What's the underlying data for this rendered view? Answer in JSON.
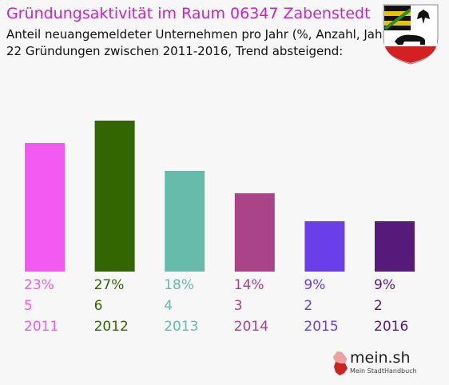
{
  "header": {
    "title": "Gründungsaktivität im Raum 06347 Zabenstedt",
    "subtitle1": "Anteil neuangemeldeter Unternehmen pro Jahr (%, Anzahl, Jahr)",
    "subtitle2": "22 Gründungen zwischen 2011-2016, Trend absteigend:"
  },
  "brand": {
    "name": "mein.sh",
    "tagline": "Mein StadtHandbuch"
  },
  "chart_data": {
    "type": "bar",
    "title": "Gründungsaktivität im Raum 06347 Zabenstedt",
    "categories": [
      "2011",
      "2012",
      "2013",
      "2014",
      "2015",
      "2016"
    ],
    "values": [
      23,
      27,
      18,
      14,
      9,
      9
    ],
    "counts": [
      5,
      6,
      4,
      3,
      2,
      2
    ],
    "percent_labels": [
      "23%",
      "27%",
      "18%",
      "14%",
      "9%",
      "9%"
    ],
    "colors": [
      "#f25af2",
      "#336600",
      "#66bbaa",
      "#aa4488",
      "#6a3ee8",
      "#551a7a"
    ],
    "ylim": [
      0,
      27
    ],
    "grid": false,
    "legend": "none"
  }
}
